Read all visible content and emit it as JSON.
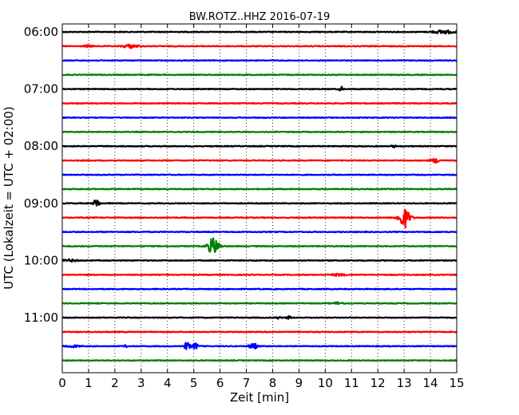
{
  "chart_data": {
    "type": "line",
    "title": "BW.ROTZ..HHZ 2016-07-19",
    "xlabel": "Zeit  [min]",
    "ylabel": "UTC (Lokalzeit = UTC + 02:00)",
    "xlim": [
      0,
      15
    ],
    "x_ticks": [
      "0",
      "1",
      "2",
      "3",
      "4",
      "5",
      "6",
      "7",
      "8",
      "9",
      "10",
      "11",
      "12",
      "13",
      "14",
      "15"
    ],
    "y_tick_labels": [
      "06:00",
      "07:00",
      "08:00",
      "09:00",
      "10:00",
      "11:00"
    ],
    "grid": true,
    "trace_colors": [
      "#000000",
      "#ff0000",
      "#0000ff",
      "#008000"
    ],
    "traces": [
      {
        "start": "06:00",
        "events": [
          {
            "t": 14.5,
            "amp": 0.25,
            "width": 0.45
          }
        ]
      },
      {
        "start": "06:15",
        "events": [
          {
            "t": 2.6,
            "amp": 0.25,
            "width": 0.35
          },
          {
            "t": 1.0,
            "amp": 0.12,
            "width": 0.2
          }
        ]
      },
      {
        "start": "06:30",
        "events": []
      },
      {
        "start": "06:45",
        "events": []
      },
      {
        "start": "07:00",
        "events": [
          {
            "t": 10.6,
            "amp": 0.35,
            "width": 0.08
          }
        ]
      },
      {
        "start": "07:15",
        "events": []
      },
      {
        "start": "07:30",
        "events": []
      },
      {
        "start": "07:45",
        "events": []
      },
      {
        "start": "08:00",
        "events": [
          {
            "t": 12.6,
            "amp": 0.15,
            "width": 0.1
          }
        ]
      },
      {
        "start": "08:15",
        "events": [
          {
            "t": 14.2,
            "amp": 0.3,
            "width": 0.2
          }
        ]
      },
      {
        "start": "08:30",
        "events": []
      },
      {
        "start": "08:45",
        "events": []
      },
      {
        "start": "09:00",
        "events": [
          {
            "t": 1.3,
            "amp": 0.7,
            "width": 0.12
          }
        ]
      },
      {
        "start": "09:15",
        "events": [
          {
            "t": 13.0,
            "amp": 1.5,
            "width": 0.25
          }
        ]
      },
      {
        "start": "09:30",
        "events": []
      },
      {
        "start": "09:45",
        "events": [
          {
            "t": 5.75,
            "amp": 1.2,
            "width": 0.25
          }
        ]
      },
      {
        "start": "10:00",
        "events": [
          {
            "t": 0.3,
            "amp": 0.15,
            "width": 0.3
          }
        ]
      },
      {
        "start": "10:15",
        "events": [
          {
            "t": 10.5,
            "amp": 0.15,
            "width": 0.3
          }
        ]
      },
      {
        "start": "10:30",
        "events": []
      },
      {
        "start": "10:45",
        "events": [
          {
            "t": 10.5,
            "amp": 0.2,
            "width": 0.2
          }
        ]
      },
      {
        "start": "11:00",
        "events": [
          {
            "t": 8.2,
            "amp": 0.15,
            "width": 0.1
          },
          {
            "t": 8.6,
            "amp": 0.2,
            "width": 0.1
          }
        ]
      },
      {
        "start": "11:15",
        "events": []
      },
      {
        "start": "11:30",
        "events": [
          {
            "t": 0.4,
            "amp": 0.15,
            "width": 0.3
          },
          {
            "t": 4.75,
            "amp": 0.6,
            "width": 0.12
          },
          {
            "t": 5.05,
            "amp": 0.5,
            "width": 0.12
          },
          {
            "t": 7.25,
            "amp": 0.6,
            "width": 0.15
          },
          {
            "t": 2.4,
            "amp": 0.12,
            "width": 0.1
          }
        ]
      },
      {
        "start": "11:45",
        "events": []
      }
    ]
  }
}
